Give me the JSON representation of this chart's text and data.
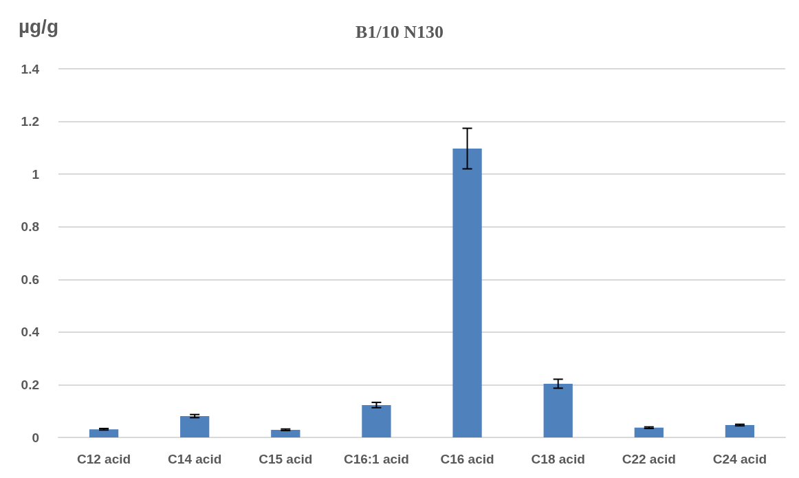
{
  "chart_data": {
    "type": "bar",
    "title": "B1/10 N130",
    "ylabel": "µg/g",
    "categories": [
      "C12 acid",
      "C14 acid",
      "C15 acid",
      "C16:1 acid",
      "C16 acid",
      "C18 acid",
      "C22 acid",
      "C24 acid"
    ],
    "series": [
      {
        "color": "#4f81bd",
        "values": [
          0.031,
          0.081,
          0.029,
          0.123,
          1.097,
          0.204,
          0.037,
          0.047
        ],
        "errors": [
          0.003,
          0.006,
          0.003,
          0.01,
          0.077,
          0.017,
          0.003,
          0.003
        ]
      }
    ],
    "ylim": [
      0,
      1.4
    ],
    "yticks": [
      0,
      0.2,
      0.4,
      0.6,
      0.8,
      1,
      1.2,
      1.4
    ],
    "grid": "y"
  }
}
